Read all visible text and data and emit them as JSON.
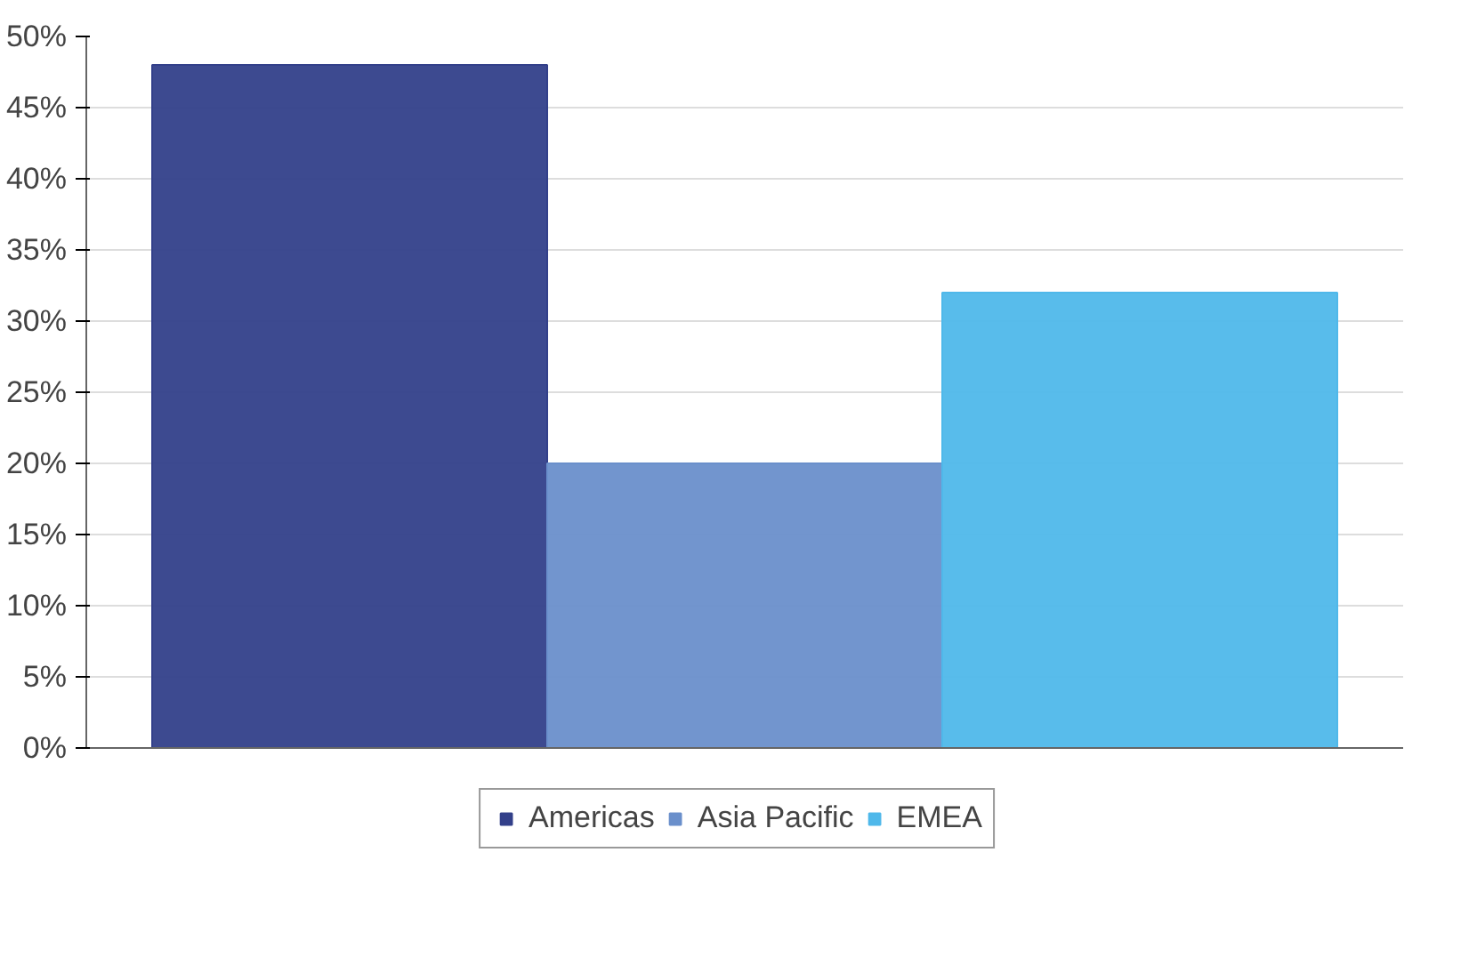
{
  "chart_data": {
    "type": "bar",
    "categories": [
      null
    ],
    "series": [
      {
        "name": "Americas",
        "color": "#33408a",
        "values": [
          48
        ]
      },
      {
        "name": "Asia Pacific",
        "color": "#6a8fcb",
        "values": [
          20
        ]
      },
      {
        "name": "EMEA",
        "color": "#4fb8ea",
        "values": [
          32
        ]
      }
    ],
    "ylim": [
      0,
      50
    ],
    "yticks": [
      {
        "value": 0,
        "label": "0%"
      },
      {
        "value": 5,
        "label": "5%"
      },
      {
        "value": 10,
        "label": "10%"
      },
      {
        "value": 15,
        "label": "15%"
      },
      {
        "value": 20,
        "label": "20%"
      },
      {
        "value": 25,
        "label": "25%"
      },
      {
        "value": 30,
        "label": "30%"
      },
      {
        "value": 35,
        "label": "35%"
      },
      {
        "value": 40,
        "label": "40%"
      },
      {
        "value": 45,
        "label": "45%"
      },
      {
        "value": 50,
        "label": "50%"
      }
    ],
    "grid": "y",
    "legend": "bottom"
  }
}
